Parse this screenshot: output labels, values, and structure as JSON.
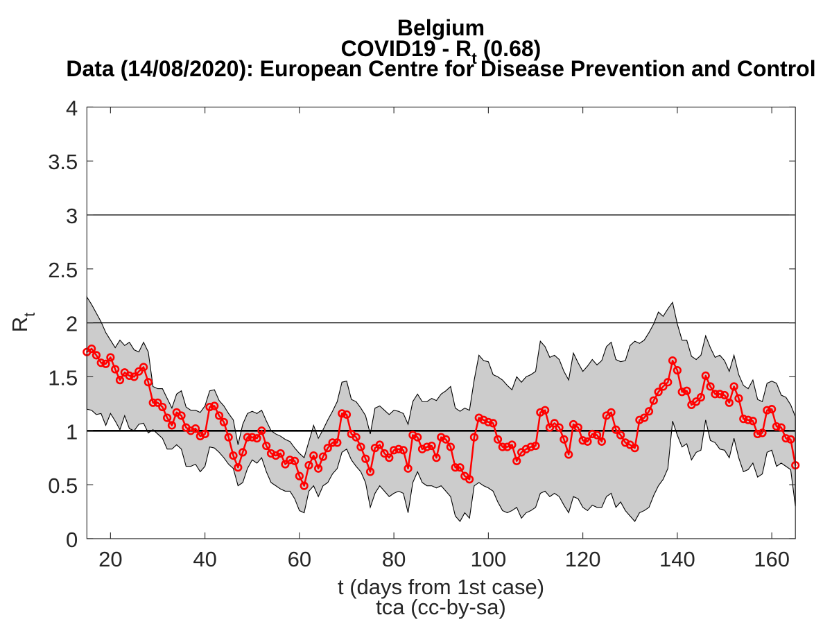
{
  "figure": {
    "background": "#ffffff",
    "title_line1": "Belgium",
    "title_line2_prefix": "COVID19 - R",
    "title_line2_sub": "t",
    "title_line2_suffix": " (0.68)",
    "title_line3": "Data (14/08/2020): European Centre for Disease Prevention and Control",
    "xlabel": "t (days from 1st case)",
    "footer": "tca (cc-by-sa)",
    "ylabel_prefix": "R",
    "ylabel_sub": "t"
  },
  "chart_data": {
    "type": "line",
    "title": "Belgium",
    "subtitle": "COVID19 - Rt (0.68)",
    "data_source_line": "Data (14/08/2020): European Centre for Disease Prevention and Control",
    "xlabel": "t (days from 1st case)",
    "ylabel": "Rt",
    "footer": "tca (cc-by-sa)",
    "xlim": [
      15,
      165
    ],
    "ylim": [
      0,
      4
    ],
    "xticks": [
      20,
      40,
      60,
      80,
      100,
      120,
      140,
      160
    ],
    "yticks": [
      0,
      0.5,
      1,
      1.5,
      2,
      2.5,
      3,
      3.5,
      4
    ],
    "ytick_labels": [
      "0",
      "0.5",
      "1",
      "1.5",
      "2",
      "2.5",
      "3",
      "3.5",
      "4"
    ],
    "grid": "off",
    "legend": "none",
    "reference_lines": [
      {
        "y": 1,
        "stroke_width": 2.6
      },
      {
        "y": 2,
        "stroke_width": 1.2
      },
      {
        "y": 3,
        "stroke_width": 1.2
      }
    ],
    "x": [
      15,
      16,
      17,
      18,
      19,
      20,
      21,
      22,
      23,
      24,
      25,
      26,
      27,
      28,
      29,
      30,
      31,
      32,
      33,
      34,
      35,
      36,
      37,
      38,
      39,
      40,
      41,
      42,
      43,
      44,
      45,
      46,
      47,
      48,
      49,
      50,
      51,
      52,
      53,
      54,
      55,
      56,
      57,
      58,
      59,
      60,
      61,
      62,
      63,
      64,
      65,
      66,
      67,
      68,
      69,
      70,
      71,
      72,
      73,
      74,
      75,
      76,
      77,
      78,
      79,
      80,
      81,
      82,
      83,
      84,
      85,
      86,
      87,
      88,
      89,
      90,
      91,
      92,
      93,
      94,
      95,
      96,
      97,
      98,
      99,
      100,
      101,
      102,
      103,
      104,
      105,
      106,
      107,
      108,
      109,
      110,
      111,
      112,
      113,
      114,
      115,
      116,
      117,
      118,
      119,
      120,
      121,
      122,
      123,
      124,
      125,
      126,
      127,
      128,
      129,
      130,
      131,
      132,
      133,
      134,
      135,
      136,
      137,
      138,
      139,
      140,
      141,
      142,
      143,
      144,
      145,
      146,
      147,
      148,
      149,
      150,
      151,
      152,
      153,
      154,
      155,
      156,
      157,
      158,
      159,
      160,
      161,
      162,
      163,
      164,
      165
    ],
    "series": [
      {
        "name": "Rt",
        "type": "line+markers",
        "marker": "circle-open",
        "color": "#ff0000",
        "values": [
          1.73,
          1.76,
          1.7,
          1.63,
          1.62,
          1.68,
          1.57,
          1.47,
          1.54,
          1.51,
          1.5,
          1.55,
          1.59,
          1.45,
          1.26,
          1.26,
          1.22,
          1.12,
          1.05,
          1.17,
          1.14,
          1.03,
          1.0,
          1.02,
          0.95,
          0.97,
          1.22,
          1.23,
          1.14,
          1.08,
          0.94,
          0.77,
          0.66,
          0.8,
          0.94,
          0.94,
          0.93,
          1.0,
          0.86,
          0.79,
          0.77,
          0.79,
          0.69,
          0.73,
          0.72,
          0.58,
          0.49,
          0.68,
          0.77,
          0.65,
          0.76,
          0.84,
          0.89,
          0.89,
          1.16,
          1.15,
          0.97,
          0.94,
          0.85,
          0.74,
          0.62,
          0.84,
          0.87,
          0.79,
          0.75,
          0.82,
          0.83,
          0.82,
          0.65,
          0.96,
          0.94,
          0.83,
          0.85,
          0.86,
          0.75,
          0.94,
          0.92,
          0.85,
          0.66,
          0.66,
          0.58,
          0.55,
          0.94,
          1.12,
          1.1,
          1.08,
          1.07,
          0.92,
          0.85,
          0.85,
          0.87,
          0.72,
          0.8,
          0.83,
          0.85,
          0.86,
          1.17,
          1.19,
          1.03,
          1.07,
          1.03,
          0.92,
          0.78,
          1.06,
          1.03,
          0.91,
          0.9,
          0.97,
          0.96,
          0.9,
          1.14,
          1.17,
          1.01,
          0.96,
          0.89,
          0.87,
          0.84,
          1.1,
          1.12,
          1.18,
          1.28,
          1.36,
          1.41,
          1.45,
          1.65,
          1.56,
          1.36,
          1.37,
          1.24,
          1.27,
          1.31,
          1.51,
          1.41,
          1.34,
          1.34,
          1.33,
          1.26,
          1.41,
          1.3,
          1.11,
          1.1,
          1.09,
          0.97,
          0.98,
          1.19,
          1.2,
          1.04,
          1.03,
          0.93,
          0.92,
          0.68
        ]
      }
    ],
    "band": {
      "name": "confidence-band",
      "fill": "#cccccc",
      "edge_color": "#000000",
      "upper": [
        2.24,
        2.17,
        2.09,
        2.01,
        1.91,
        1.84,
        1.77,
        1.84,
        1.79,
        1.82,
        1.75,
        1.73,
        1.82,
        1.73,
        1.41,
        1.39,
        1.39,
        1.3,
        1.21,
        1.34,
        1.37,
        1.22,
        1.19,
        1.19,
        1.17,
        1.23,
        1.37,
        1.38,
        1.28,
        1.23,
        1.16,
        1.1,
        0.87,
        1.06,
        1.16,
        1.18,
        1.16,
        1.19,
        1.09,
        1.0,
        0.97,
        0.95,
        0.92,
        0.9,
        0.84,
        0.79,
        0.75,
        0.9,
        1.05,
        0.93,
        1.01,
        1.1,
        1.18,
        1.27,
        1.45,
        1.46,
        1.29,
        1.27,
        1.21,
        1.14,
        0.97,
        1.21,
        1.23,
        1.19,
        1.15,
        1.19,
        1.18,
        1.16,
        1.06,
        1.27,
        1.34,
        1.27,
        1.27,
        1.3,
        1.28,
        1.34,
        1.37,
        1.41,
        1.21,
        1.18,
        1.21,
        1.19,
        1.47,
        1.7,
        1.65,
        1.64,
        1.52,
        1.5,
        1.47,
        1.42,
        1.38,
        1.5,
        1.45,
        1.5,
        1.52,
        1.55,
        1.83,
        1.78,
        1.68,
        1.7,
        1.66,
        1.55,
        1.47,
        1.72,
        1.63,
        1.55,
        1.6,
        1.66,
        1.61,
        1.65,
        1.78,
        1.82,
        1.66,
        1.64,
        1.65,
        1.79,
        1.83,
        1.81,
        1.84,
        1.91,
        1.99,
        2.1,
        2.06,
        2.13,
        2.19,
        1.99,
        1.84,
        1.84,
        1.69,
        1.66,
        1.7,
        1.88,
        1.77,
        1.68,
        1.7,
        1.65,
        1.55,
        1.7,
        1.52,
        1.42,
        1.39,
        1.47,
        1.29,
        1.27,
        1.44,
        1.46,
        1.44,
        1.33,
        1.31,
        1.24,
        1.13
      ],
      "lower": [
        1.2,
        1.19,
        1.15,
        1.16,
        1.05,
        1.16,
        1.09,
        1.01,
        1.14,
        1.02,
        1.0,
        1.06,
        1.07,
        0.98,
        1.01,
        0.97,
        0.93,
        0.83,
        0.83,
        0.87,
        0.83,
        0.67,
        0.67,
        0.69,
        0.62,
        0.67,
        0.85,
        0.84,
        0.8,
        0.75,
        0.69,
        0.65,
        0.49,
        0.52,
        0.65,
        0.73,
        0.7,
        0.75,
        0.62,
        0.52,
        0.49,
        0.46,
        0.44,
        0.44,
        0.37,
        0.26,
        0.24,
        0.44,
        0.49,
        0.39,
        0.49,
        0.52,
        0.6,
        0.65,
        0.8,
        0.83,
        0.73,
        0.67,
        0.62,
        0.52,
        0.29,
        0.42,
        0.49,
        0.44,
        0.39,
        0.42,
        0.44,
        0.42,
        0.24,
        0.52,
        0.62,
        0.52,
        0.49,
        0.49,
        0.47,
        0.49,
        0.44,
        0.39,
        0.21,
        0.16,
        0.24,
        0.19,
        0.49,
        0.52,
        0.49,
        0.47,
        0.44,
        0.34,
        0.26,
        0.24,
        0.26,
        0.29,
        0.19,
        0.24,
        0.26,
        0.29,
        0.42,
        0.44,
        0.39,
        0.42,
        0.39,
        0.31,
        0.24,
        0.39,
        0.37,
        0.29,
        0.26,
        0.31,
        0.29,
        0.29,
        0.39,
        0.42,
        0.29,
        0.34,
        0.26,
        0.21,
        0.16,
        0.24,
        0.26,
        0.29,
        0.4,
        0.49,
        0.55,
        0.65,
        1.09,
        0.96,
        0.85,
        0.88,
        0.73,
        0.8,
        0.82,
        1.1,
        0.91,
        0.89,
        0.83,
        0.82,
        0.75,
        0.93,
        0.75,
        0.62,
        0.64,
        0.7,
        0.57,
        0.6,
        0.8,
        0.82,
        0.67,
        0.7,
        0.67,
        0.64,
        0.3
      ]
    },
    "colors": {
      "line": "#ff0000",
      "band_fill": "#cccccc",
      "band_edge": "#000000",
      "reference_line": "#000000",
      "axis": "#262626",
      "title_text": "#000000",
      "label_text": "#262626"
    }
  }
}
